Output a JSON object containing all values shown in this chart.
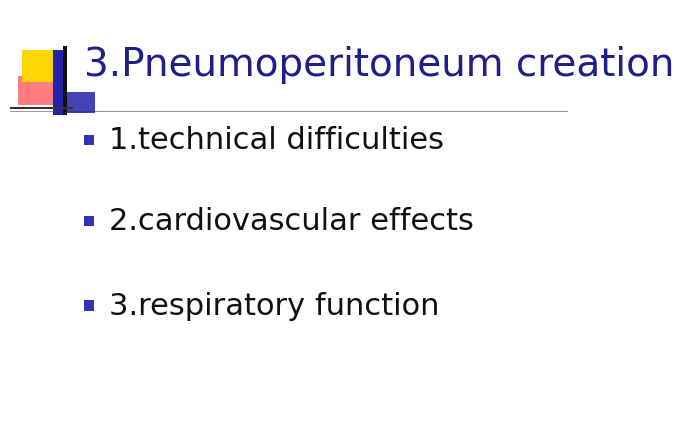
{
  "title": "3.Pneumoperitoneum creation",
  "title_color": "#1f1f8c",
  "title_fontsize": 28,
  "bullet_items": [
    "1.technical difficulties",
    "2.cardiovascular effects",
    "3.respiratory function"
  ],
  "bullet_color": "#111111",
  "bullet_fontsize": 22,
  "bullet_marker_color": "#3333bb",
  "background_color": "#ffffff",
  "deco_yellow": "#FFD700",
  "deco_red_top": "#FF6666",
  "deco_red_bottom": "#FF2222",
  "deco_blue_dark": "#2222aa",
  "deco_blue_light": "#6666cc",
  "separator_color": "#999999"
}
